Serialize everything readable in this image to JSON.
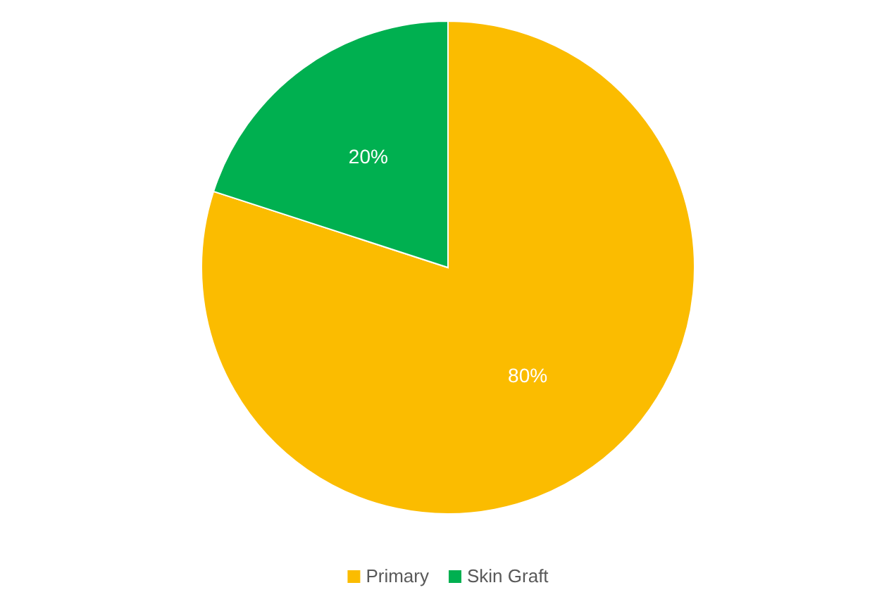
{
  "chart_data": {
    "type": "pie",
    "categories": [
      "Primary",
      "Skin Graft"
    ],
    "values": [
      80,
      20
    ],
    "colors": [
      "#fbbc00",
      "#00b050"
    ],
    "value_labels": [
      "80%",
      "20%"
    ],
    "legend": "bottom"
  }
}
